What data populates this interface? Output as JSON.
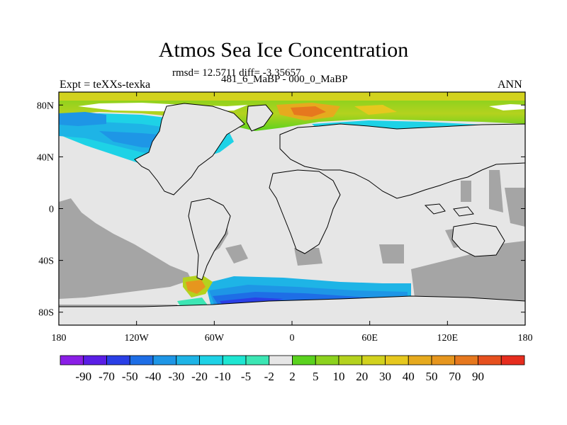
{
  "title": "Atmos Sea Ice Concentration",
  "stats": "rmsd= 12.5711 diff= -3.35657",
  "experiment": "Expt = teXXs-texka",
  "cases": "481_6_MaBP - 000_0_MaBP",
  "season": "ANN",
  "map": {
    "lat_ticks": [
      {
        "lat": 80,
        "label": "80N"
      },
      {
        "lat": 40,
        "label": "40N"
      },
      {
        "lat": 0,
        "label": "0"
      },
      {
        "lat": -40,
        "label": "40S"
      },
      {
        "lat": -80,
        "label": "80S"
      }
    ],
    "lon_ticks": [
      {
        "lon": -180,
        "label": "180"
      },
      {
        "lon": -120,
        "label": "120W"
      },
      {
        "lon": -60,
        "label": "60W"
      },
      {
        "lon": 0,
        "label": "0"
      },
      {
        "lon": 60,
        "label": "60E"
      },
      {
        "lon": 120,
        "label": "120E"
      },
      {
        "lon": 180,
        "label": "180"
      }
    ],
    "land_color": "#e6e6e6",
    "missing_color": "#a5a5a5",
    "coast_color": "#000000"
  },
  "colorbar": {
    "colors": [
      "#8a1ee6",
      "#5a1ee6",
      "#2a3fe6",
      "#1e6ee6",
      "#1e96e6",
      "#1eb4e6",
      "#1ed2e6",
      "#1ee6d2",
      "#3ce6b4",
      "#e6e6e6",
      "#5ad21e",
      "#8cd21e",
      "#b4d21e",
      "#d2d21e",
      "#e6c81e",
      "#e6aa1e",
      "#e6961e",
      "#e6781e",
      "#e6501e",
      "#e62d1e"
    ],
    "labels": [
      "-90",
      "-70",
      "-50",
      "-40",
      "-30",
      "-20",
      "-10",
      "-5",
      "-2",
      "2",
      "5",
      "10",
      "20",
      "30",
      "40",
      "50",
      "70",
      "90"
    ]
  }
}
